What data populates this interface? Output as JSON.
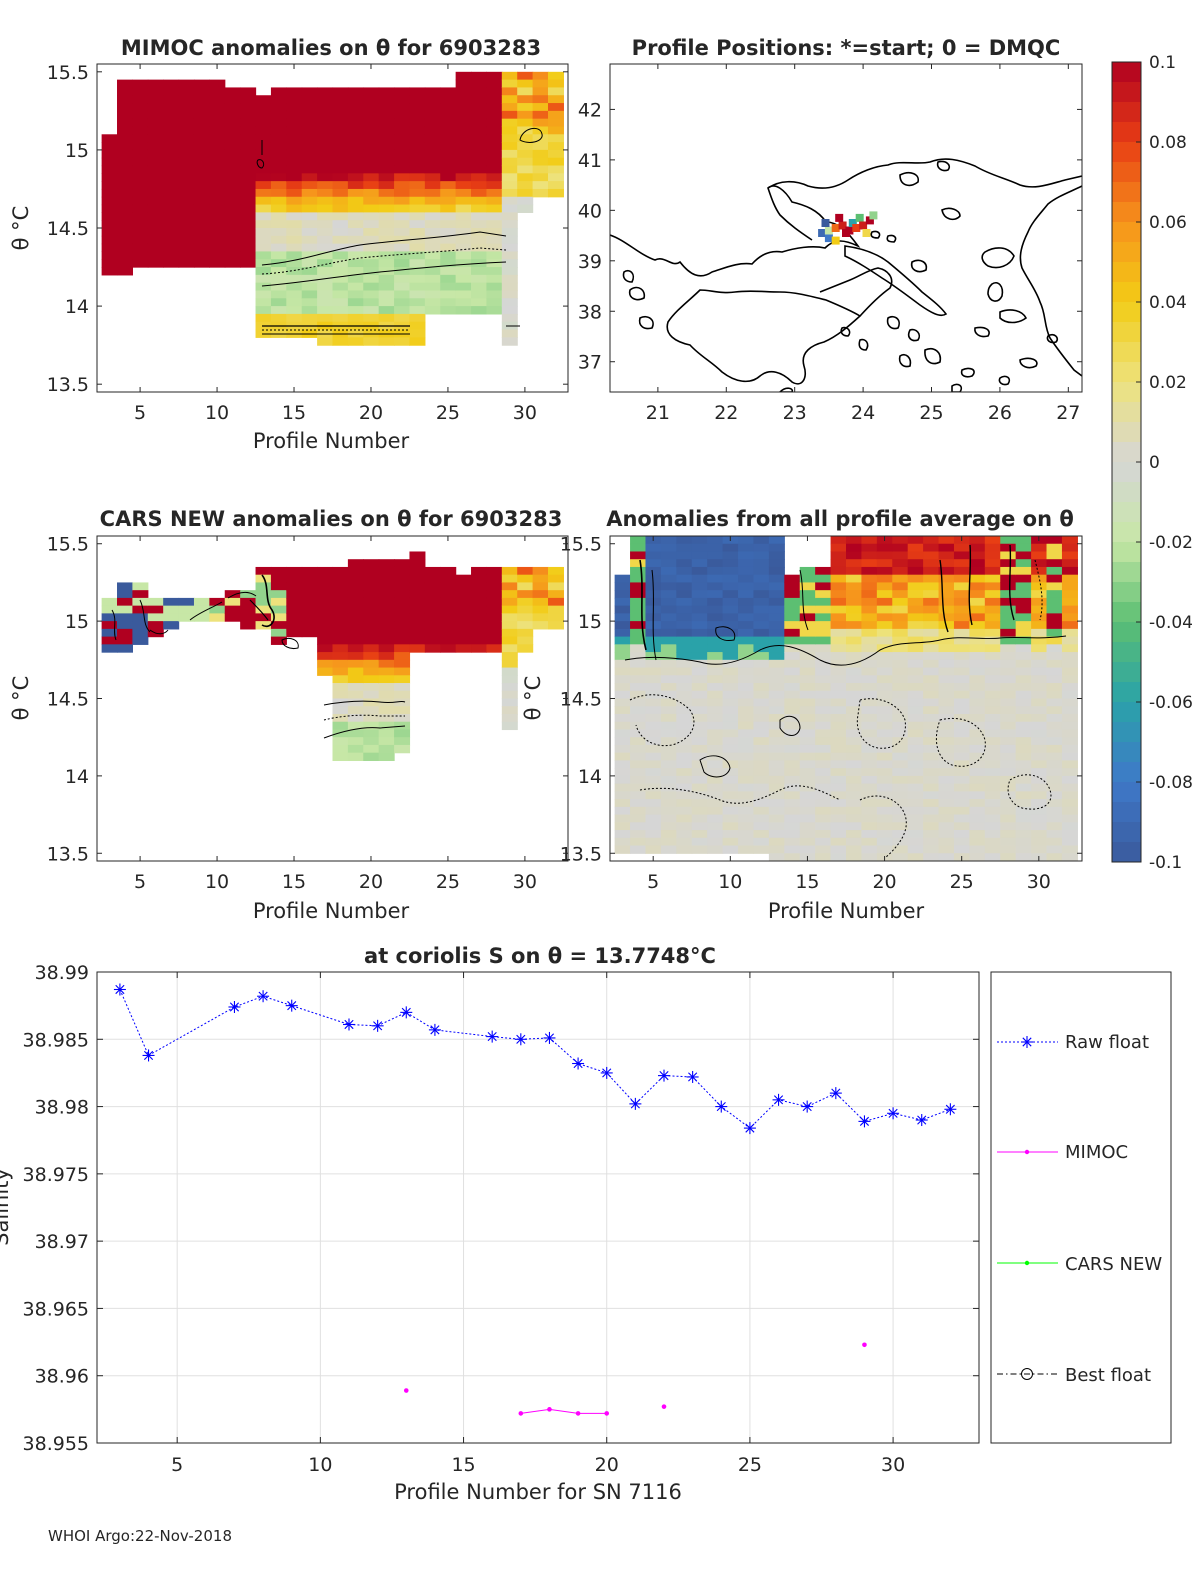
{
  "colors": {
    "raw_float": "#0000ff",
    "mimoc": "#ff00ff",
    "cars_new": "#00ff00",
    "best_float": "#000000",
    "land_outline": "#000000",
    "grid": "#e0e0e0"
  },
  "colorbar": {
    "ticks": [
      0.1,
      0.08,
      0.06,
      0.04,
      0.02,
      0,
      -0.02,
      -0.04,
      -0.06,
      -0.08,
      -0.1
    ],
    "tick_labels": [
      "0.1",
      "0.08",
      "0.06",
      "0.04",
      "0.02",
      "0",
      "-0.02",
      "-0.04",
      "-0.06",
      "-0.08",
      "-0.1"
    ],
    "range": [
      -0.1,
      0.1
    ],
    "stops": [
      "#3a5a9c",
      "#3f79c9",
      "#2aa2a9",
      "#5cbf72",
      "#c7e7a6",
      "#d6d6d6",
      "#ede27c",
      "#f2cc16",
      "#f6931c",
      "#e83e14",
      "#b00020"
    ]
  },
  "footer": {
    "text": "WHOI Argo:22-Nov-2018"
  },
  "chart_data": [
    {
      "id": "mimoc",
      "type": "heatmap",
      "title": "MIMOC anomalies on θ  for 6903283",
      "xlabel": "Profile Number",
      "ylabel": "θ °C",
      "xlim": [
        2.2,
        32.8
      ],
      "ylim": [
        13.45,
        15.55
      ],
      "xticks": [
        5,
        10,
        15,
        20,
        25,
        30
      ],
      "yticks": [
        13.5,
        14,
        14.5,
        15,
        15.5
      ],
      "ytick_labels": [
        "13.5",
        "14",
        "14.5",
        "15",
        "15.5"
      ],
      "columns": [
        {
          "x": 3,
          "top": 15.1,
          "bottom": 14.2,
          "profile": "warm_uniform"
        },
        {
          "x": 4,
          "top": 15.45,
          "bottom": 14.2,
          "profile": "warm_uniform"
        },
        {
          "x": 5,
          "top": 15.45,
          "bottom": 14.25,
          "profile": "warm_uniform"
        },
        {
          "x": 6,
          "top": 15.45,
          "bottom": 14.25,
          "profile": "warm_uniform"
        },
        {
          "x": 7,
          "top": 15.45,
          "bottom": 14.25,
          "profile": "warm_uniform"
        },
        {
          "x": 8,
          "top": 15.45,
          "bottom": 14.25,
          "profile": "warm_uniform"
        },
        {
          "x": 9,
          "top": 15.45,
          "bottom": 14.25,
          "profile": "warm_uniform"
        },
        {
          "x": 10,
          "top": 15.45,
          "bottom": 14.25,
          "profile": "warm_uniform"
        },
        {
          "x": 11,
          "top": 15.4,
          "bottom": 14.25,
          "profile": "warm_uniform"
        },
        {
          "x": 12,
          "top": 15.4,
          "bottom": 14.25,
          "profile": "warm_uniform"
        },
        {
          "x": 13,
          "top": 15.35,
          "bottom": 13.8,
          "profile": "layered"
        },
        {
          "x": 14,
          "top": 15.4,
          "bottom": 13.8,
          "profile": "layered"
        },
        {
          "x": 15,
          "top": 15.4,
          "bottom": 13.8,
          "profile": "layered"
        },
        {
          "x": 16,
          "top": 15.4,
          "bottom": 13.8,
          "profile": "layered"
        },
        {
          "x": 17,
          "top": 15.4,
          "bottom": 13.75,
          "profile": "layered"
        },
        {
          "x": 18,
          "top": 15.4,
          "bottom": 13.75,
          "profile": "layered"
        },
        {
          "x": 19,
          "top": 15.4,
          "bottom": 13.75,
          "profile": "layered"
        },
        {
          "x": 20,
          "top": 15.4,
          "bottom": 13.75,
          "profile": "layered"
        },
        {
          "x": 21,
          "top": 15.4,
          "bottom": 13.75,
          "profile": "layered"
        },
        {
          "x": 22,
          "top": 15.4,
          "bottom": 13.75,
          "profile": "layered"
        },
        {
          "x": 23,
          "top": 15.4,
          "bottom": 13.75,
          "profile": "layered"
        },
        {
          "x": 24,
          "top": 15.4,
          "bottom": 13.95,
          "profile": "layered"
        },
        {
          "x": 25,
          "top": 15.4,
          "bottom": 13.95,
          "profile": "layered"
        },
        {
          "x": 26,
          "top": 15.5,
          "bottom": 13.95,
          "profile": "layered"
        },
        {
          "x": 27,
          "top": 15.5,
          "bottom": 13.95,
          "profile": "layered"
        },
        {
          "x": 28,
          "top": 15.5,
          "bottom": 13.95,
          "profile": "layered"
        },
        {
          "x": 29,
          "top": 15.5,
          "bottom": 13.75,
          "profile": "surface_mix"
        },
        {
          "x": 30,
          "top": 15.5,
          "bottom": 14.6,
          "profile": "surface_mix"
        },
        {
          "x": 31,
          "top": 15.5,
          "bottom": 14.7,
          "profile": "surface_mix"
        },
        {
          "x": 32,
          "top": 15.5,
          "bottom": 14.7,
          "profile": "surface_mix"
        }
      ]
    },
    {
      "id": "positions",
      "type": "map",
      "title": "Profile Positions: *=start; 0 = DMQC",
      "xlim": [
        20.3,
        27.2
      ],
      "ylim": [
        36.4,
        42.9
      ],
      "xticks": [
        21,
        22,
        23,
        24,
        25,
        26,
        27
      ],
      "yticks": [
        37,
        38,
        39,
        40,
        41,
        42
      ],
      "profile_positions": [
        {
          "lon": 23.4,
          "lat": 39.55,
          "v": -0.09
        },
        {
          "lon": 23.5,
          "lat": 39.45,
          "v": -0.08
        },
        {
          "lon": 23.5,
          "lat": 39.6,
          "v": -0.02
        },
        {
          "lon": 23.6,
          "lat": 39.4,
          "v": 0.04
        },
        {
          "lon": 23.6,
          "lat": 39.65,
          "v": 0.07
        },
        {
          "lon": 23.7,
          "lat": 39.7,
          "v": 0.09
        },
        {
          "lon": 23.75,
          "lat": 39.55,
          "v": 0.1
        },
        {
          "lon": 23.8,
          "lat": 39.6,
          "v": 0.1
        },
        {
          "lon": 23.85,
          "lat": 39.75,
          "v": -0.06
        },
        {
          "lon": 23.9,
          "lat": 39.65,
          "v": 0.08
        },
        {
          "lon": 23.95,
          "lat": 39.85,
          "v": -0.04
        },
        {
          "lon": 24.0,
          "lat": 39.7,
          "v": 0.09
        },
        {
          "lon": 24.05,
          "lat": 39.55,
          "v": 0.03
        },
        {
          "lon": 24.1,
          "lat": 39.8,
          "v": 0.1
        },
        {
          "lon": 24.15,
          "lat": 39.9,
          "v": -0.03
        },
        {
          "lon": 23.65,
          "lat": 39.85,
          "v": 0.1
        },
        {
          "lon": 23.45,
          "lat": 39.75,
          "v": -0.1
        }
      ]
    },
    {
      "id": "cars",
      "type": "heatmap",
      "title": "CARS NEW anomalies on θ for 6903283",
      "xlabel": "Profile Number",
      "ylabel": "θ °C",
      "xlim": [
        2.2,
        32.8
      ],
      "ylim": [
        13.45,
        15.55
      ],
      "xticks": [
        5,
        10,
        15,
        20,
        25,
        30
      ],
      "yticks": [
        13.5,
        14,
        14.5,
        15,
        15.5
      ],
      "ytick_labels": [
        "13.5",
        "14",
        "14.5",
        "15",
        "15.5"
      ],
      "columns": [
        {
          "x": 3,
          "top": 15.15,
          "bottom": 14.8,
          "profile": "cool_mixed"
        },
        {
          "x": 4,
          "top": 15.25,
          "bottom": 14.8,
          "profile": "cool_mixed"
        },
        {
          "x": 5,
          "top": 15.25,
          "bottom": 14.85,
          "profile": "cool_mixed"
        },
        {
          "x": 6,
          "top": 15.15,
          "bottom": 14.9,
          "profile": "cool_mixed"
        },
        {
          "x": 7,
          "top": 15.15,
          "bottom": 14.95,
          "profile": "cool_mixed"
        },
        {
          "x": 8,
          "top": 15.15,
          "bottom": 15.0,
          "profile": "cool_mixed"
        },
        {
          "x": 9,
          "top": 15.15,
          "bottom": 15.0,
          "profile": "cool_mixed"
        },
        {
          "x": 10,
          "top": 15.15,
          "bottom": 15.0,
          "profile": "mixed_warm"
        },
        {
          "x": 11,
          "top": 15.2,
          "bottom": 15.0,
          "profile": "mixed_warm"
        },
        {
          "x": 12,
          "top": 15.2,
          "bottom": 14.95,
          "profile": "mixed_warm"
        },
        {
          "x": 13,
          "top": 15.35,
          "bottom": 14.95,
          "profile": "mixed_warm"
        },
        {
          "x": 14,
          "top": 15.35,
          "bottom": 14.85,
          "profile": "mixed_warm"
        },
        {
          "x": 15,
          "top": 15.35,
          "bottom": 14.9,
          "profile": "layered"
        },
        {
          "x": 16,
          "top": 15.35,
          "bottom": 14.9,
          "profile": "layered"
        },
        {
          "x": 17,
          "top": 15.35,
          "bottom": 14.65,
          "profile": "layered"
        },
        {
          "x": 18,
          "top": 15.35,
          "bottom": 14.1,
          "profile": "layered"
        },
        {
          "x": 19,
          "top": 15.4,
          "bottom": 14.1,
          "profile": "layered"
        },
        {
          "x": 20,
          "top": 15.4,
          "bottom": 14.1,
          "profile": "layered"
        },
        {
          "x": 21,
          "top": 15.4,
          "bottom": 14.1,
          "profile": "layered"
        },
        {
          "x": 22,
          "top": 15.4,
          "bottom": 14.15,
          "profile": "layered"
        },
        {
          "x": 23,
          "top": 15.45,
          "bottom": 14.8,
          "profile": "layered"
        },
        {
          "x": 24,
          "top": 15.35,
          "bottom": 14.8,
          "profile": "layered"
        },
        {
          "x": 25,
          "top": 15.35,
          "bottom": 14.8,
          "profile": "layered"
        },
        {
          "x": 26,
          "top": 15.3,
          "bottom": 14.8,
          "profile": "layered"
        },
        {
          "x": 27,
          "top": 15.35,
          "bottom": 14.8,
          "profile": "layered"
        },
        {
          "x": 28,
          "top": 15.35,
          "bottom": 14.8,
          "profile": "layered"
        },
        {
          "x": 29,
          "top": 15.35,
          "bottom": 14.3,
          "profile": "surface_mix"
        },
        {
          "x": 30,
          "top": 15.35,
          "bottom": 14.8,
          "profile": "surface_mix"
        },
        {
          "x": 31,
          "top": 15.35,
          "bottom": 14.95,
          "profile": "surface_mix"
        },
        {
          "x": 32,
          "top": 15.35,
          "bottom": 14.95,
          "profile": "surface_mix"
        }
      ]
    },
    {
      "id": "allavg",
      "type": "heatmap",
      "title": "Anomalies from all profile average on θ",
      "xlabel": "Profile Number",
      "ylabel": "θ °C",
      "xlim": [
        2.2,
        32.8
      ],
      "ylim": [
        13.45,
        15.55
      ],
      "xticks": [
        5,
        10,
        15,
        20,
        25,
        30
      ],
      "yticks": [
        13.5,
        14,
        14.5,
        15,
        15.5
      ],
      "ytick_labels": [
        "13.5",
        "14",
        "14.5",
        "15",
        "15.5"
      ],
      "columns": [
        {
          "x": 3,
          "top": 15.3,
          "bottom": 13.5,
          "profile": "cold_top"
        },
        {
          "x": 4,
          "top": 15.55,
          "bottom": 13.5,
          "profile": "mixed_top"
        },
        {
          "x": 5,
          "top": 15.55,
          "bottom": 13.5,
          "profile": "cold_top"
        },
        {
          "x": 6,
          "top": 15.55,
          "bottom": 13.5,
          "profile": "cold_top"
        },
        {
          "x": 7,
          "top": 15.55,
          "bottom": 13.5,
          "profile": "cold_top"
        },
        {
          "x": 8,
          "top": 15.55,
          "bottom": 13.5,
          "profile": "cold_top"
        },
        {
          "x": 9,
          "top": 15.55,
          "bottom": 13.5,
          "profile": "cold_top"
        },
        {
          "x": 10,
          "top": 15.55,
          "bottom": 13.5,
          "profile": "cold_top"
        },
        {
          "x": 11,
          "top": 15.55,
          "bottom": 13.5,
          "profile": "cold_top"
        },
        {
          "x": 12,
          "top": 15.55,
          "bottom": 13.5,
          "profile": "cold_top"
        },
        {
          "x": 13,
          "top": 15.55,
          "bottom": 13.45,
          "profile": "cold_top"
        },
        {
          "x": 14,
          "top": 15.3,
          "bottom": 13.45,
          "profile": "mixed_top"
        },
        {
          "x": 15,
          "top": 15.35,
          "bottom": 13.45,
          "profile": "mixed_top"
        },
        {
          "x": 16,
          "top": 15.35,
          "bottom": 13.45,
          "profile": "mixed_top"
        },
        {
          "x": 17,
          "top": 15.55,
          "bottom": 13.45,
          "profile": "warm_top"
        },
        {
          "x": 18,
          "top": 15.55,
          "bottom": 13.45,
          "profile": "warm_top"
        },
        {
          "x": 19,
          "top": 15.55,
          "bottom": 13.45,
          "profile": "warm_top"
        },
        {
          "x": 20,
          "top": 15.55,
          "bottom": 13.45,
          "profile": "warm_top"
        },
        {
          "x": 21,
          "top": 15.55,
          "bottom": 13.45,
          "profile": "warm_top"
        },
        {
          "x": 22,
          "top": 15.55,
          "bottom": 13.45,
          "profile": "warm_top"
        },
        {
          "x": 23,
          "top": 15.55,
          "bottom": 13.45,
          "profile": "warm_top"
        },
        {
          "x": 24,
          "top": 15.55,
          "bottom": 13.45,
          "profile": "warm_top"
        },
        {
          "x": 25,
          "top": 15.55,
          "bottom": 13.45,
          "profile": "warm_top"
        },
        {
          "x": 26,
          "top": 15.55,
          "bottom": 13.45,
          "profile": "warm_top"
        },
        {
          "x": 27,
          "top": 15.55,
          "bottom": 13.45,
          "profile": "warm_top"
        },
        {
          "x": 28,
          "top": 15.55,
          "bottom": 13.45,
          "profile": "mixed_top"
        },
        {
          "x": 29,
          "top": 15.55,
          "bottom": 13.45,
          "profile": "mixed_top"
        },
        {
          "x": 30,
          "top": 15.55,
          "bottom": 13.45,
          "profile": "warm_top"
        },
        {
          "x": 31,
          "top": 15.55,
          "bottom": 13.45,
          "profile": "mixed_top"
        },
        {
          "x": 32,
          "top": 15.55,
          "bottom": 13.45,
          "profile": "warm_top"
        }
      ]
    },
    {
      "id": "salinity",
      "type": "line",
      "title": "at coriolis S on θ = 13.7748°C",
      "xlabel": "Profile Number for SN 7116",
      "ylabel": "Salinity",
      "xlim": [
        2.2,
        33
      ],
      "ylim": [
        38.955,
        38.99
      ],
      "xticks": [
        5,
        10,
        15,
        20,
        25,
        30
      ],
      "yticks": [
        38.955,
        38.96,
        38.965,
        38.97,
        38.975,
        38.98,
        38.985,
        38.99
      ],
      "ytick_labels": [
        "38.955",
        "38.96",
        "38.965",
        "38.97",
        "38.975",
        "38.98",
        "38.985",
        "38.99"
      ],
      "grid": true,
      "legend": "outside-right",
      "series": [
        {
          "name": "Raw float",
          "style": "dotted-star",
          "x": [
            3,
            4,
            7,
            8,
            9,
            11,
            12,
            13,
            14,
            16,
            17,
            18,
            19,
            20,
            21,
            22,
            23,
            24,
            25,
            26,
            27,
            28,
            29,
            30,
            31,
            32
          ],
          "y": [
            38.9887,
            38.9838,
            38.9874,
            38.9882,
            38.9875,
            38.9861,
            38.986,
            38.987,
            38.9857,
            38.9852,
            38.985,
            38.9851,
            38.9832,
            38.9825,
            38.9802,
            38.9823,
            38.9822,
            38.98,
            38.9784,
            38.9805,
            38.98,
            38.981,
            38.9789,
            38.9795,
            38.979,
            38.9798
          ]
        },
        {
          "name": "MIMOC",
          "style": "solid-dot",
          "x": [
            13,
            17,
            18,
            19,
            20,
            22,
            29
          ],
          "y": [
            38.9589,
            38.9572,
            38.9575,
            38.9572,
            38.9572,
            38.9577,
            38.9623
          ],
          "segments": [
            [
              13
            ],
            [
              17,
              18,
              19,
              20
            ],
            [
              22
            ],
            [
              29
            ]
          ]
        },
        {
          "name": "CARS NEW",
          "style": "solid-dot",
          "x": [],
          "y": []
        },
        {
          "name": "Best float",
          "style": "dashdot-circle",
          "x": [],
          "y": []
        }
      ]
    }
  ]
}
